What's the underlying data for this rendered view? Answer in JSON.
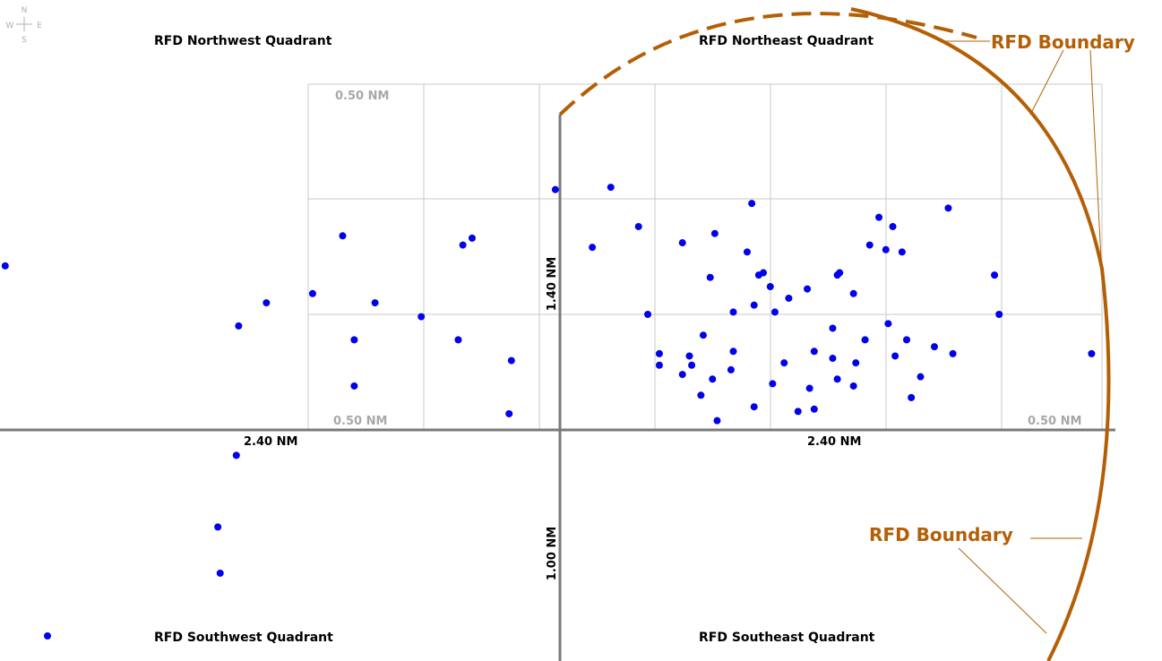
{
  "compass": {
    "north": "N",
    "south": "S",
    "east": "E",
    "west": "W"
  },
  "quadrants": {
    "northwest": "RFD Northwest Quadrant",
    "northeast": "RFD Northeast Quadrant",
    "southwest": "RFD Southwest Quadrant",
    "southeast": "RFD Southeast Quadrant"
  },
  "axis_labels": {
    "west": "2.40 NM",
    "east": "2.40 NM",
    "north": "1.40 NM",
    "south": "1.00 NM"
  },
  "grid_labels": {
    "top_left": "0.50 NM",
    "bottom_left": "0.50 NM",
    "bottom_right": "0.50 NM"
  },
  "boundary_labels": {
    "upper": "RFD Boundary",
    "lower": "RFD Boundary"
  },
  "colors": {
    "points": "#0000ee",
    "boundary": "#b45f06",
    "axis": "#7a7a7a",
    "grid": "#c8c8c8"
  },
  "chart_data": {
    "type": "scatter",
    "title": "",
    "xlabel": "",
    "ylabel": "",
    "xlim": [
      -2.4,
      2.4
    ],
    "ylim": [
      -1.0,
      1.4
    ],
    "grid": true,
    "series": [
      {
        "values": [
          [
            -2.4,
            0.71
          ],
          [
            -1.39,
            0.45
          ],
          [
            -1.27,
            0.55
          ],
          [
            -0.94,
            0.84
          ],
          [
            -0.42,
            0.8
          ],
          [
            -0.38,
            0.83
          ],
          [
            -0.44,
            0.39
          ],
          [
            -0.21,
            0.3
          ],
          [
            -0.22,
            0.07
          ],
          [
            -0.6,
            0.49
          ],
          [
            -0.89,
            0.39
          ],
          [
            -1.07,
            0.59
          ],
          [
            -0.8,
            0.55
          ],
          [
            -0.89,
            0.19
          ],
          [
            -1.4,
            -0.11
          ],
          [
            -1.48,
            -0.42
          ],
          [
            -1.47,
            -0.62
          ],
          [
            -0.02,
            1.04
          ],
          [
            0.14,
            0.79
          ],
          [
            0.43,
            0.28
          ],
          [
            0.22,
            1.05
          ],
          [
            0.38,
            0.5
          ],
          [
            0.75,
            0.51
          ],
          [
            1.07,
            0.61
          ],
          [
            0.62,
            0.41
          ],
          [
            0.57,
            0.28
          ],
          [
            0.56,
            0.32
          ],
          [
            0.43,
            0.33
          ],
          [
            0.34,
            0.88
          ],
          [
            0.65,
            0.66
          ],
          [
            0.83,
            0.98
          ],
          [
            0.53,
            0.81
          ],
          [
            0.81,
            0.77
          ],
          [
            0.86,
            0.67
          ],
          [
            0.67,
            0.85
          ],
          [
            0.88,
            0.68
          ],
          [
            0.91,
            0.62
          ],
          [
            0.84,
            0.54
          ],
          [
            0.99,
            0.57
          ],
          [
            0.93,
            0.51
          ],
          [
            1.18,
            0.44
          ],
          [
            1.2,
            0.67
          ],
          [
            1.27,
            0.59
          ],
          [
            1.21,
            0.68
          ],
          [
            1.44,
            0.88
          ],
          [
            1.41,
            0.78
          ],
          [
            1.38,
            0.92
          ],
          [
            1.34,
            0.8
          ],
          [
            1.48,
            0.77
          ],
          [
            1.68,
            0.96
          ],
          [
            1.88,
            0.67
          ],
          [
            1.9,
            0.5
          ],
          [
            2.3,
            0.33
          ],
          [
            1.1,
            0.09
          ],
          [
            1.27,
            0.19
          ],
          [
            1.5,
            0.39
          ],
          [
            1.52,
            0.14
          ],
          [
            1.7,
            0.33
          ],
          [
            0.74,
            0.26
          ],
          [
            0.84,
            0.1
          ],
          [
            0.66,
            0.22
          ],
          [
            0.61,
            0.15
          ],
          [
            0.68,
            0.04
          ],
          [
            0.53,
            0.24
          ],
          [
            0.97,
            0.29
          ],
          [
            1.08,
            0.18
          ],
          [
            1.18,
            0.31
          ],
          [
            1.42,
            0.46
          ],
          [
            1.62,
            0.36
          ],
          [
            1.03,
            0.08
          ],
          [
            1.2,
            0.22
          ],
          [
            1.56,
            0.23
          ],
          [
            1.28,
            0.29
          ],
          [
            0.75,
            0.34
          ],
          [
            0.92,
            0.2
          ],
          [
            1.1,
            0.34
          ],
          [
            1.32,
            0.39
          ],
          [
            1.45,
            0.32
          ]
        ]
      }
    ]
  }
}
